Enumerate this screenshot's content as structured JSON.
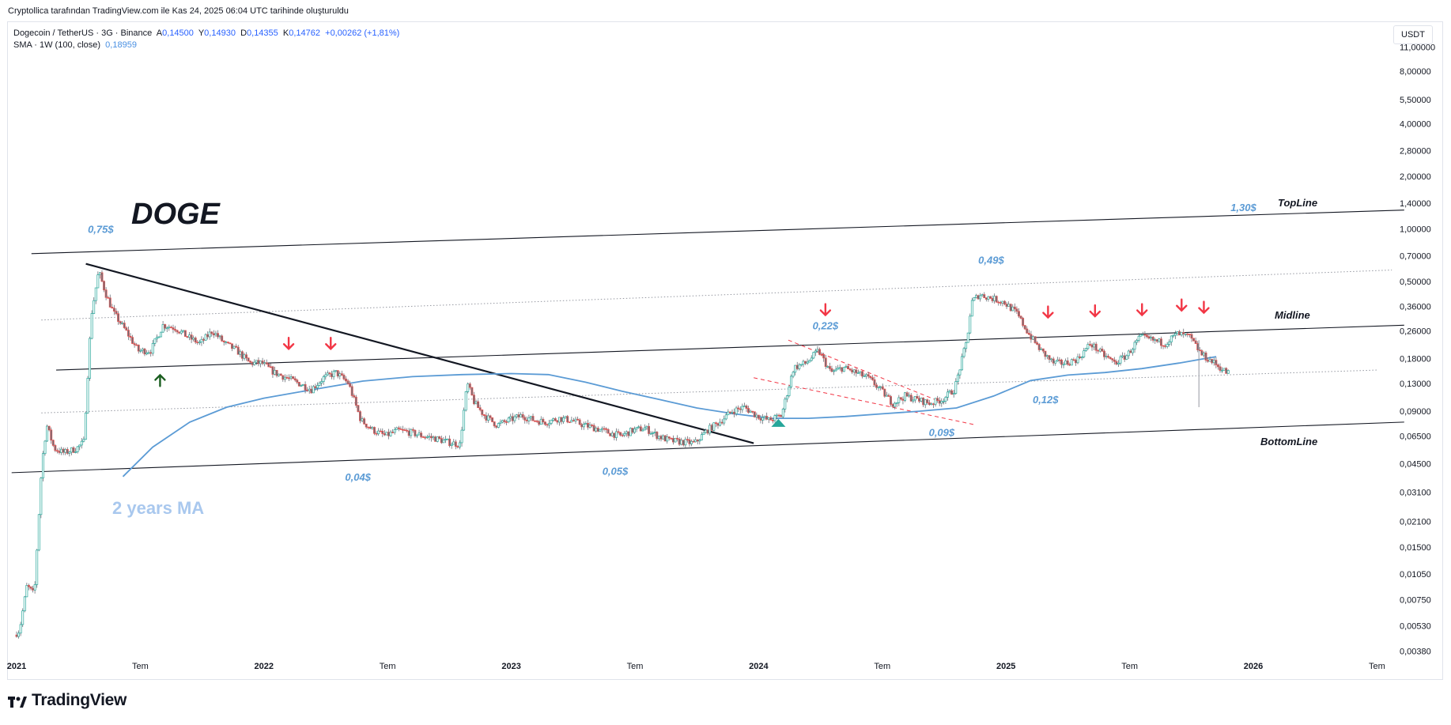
{
  "caption": "Cryptollica tarafından TradingView.com ile Kas 24, 2025 06:04 UTC tarihinde oluşturuldu",
  "legend": {
    "symbol": "Dogecoin / TetherUS · 3G · Binance",
    "open_label": "A",
    "open": "0,14500",
    "high_label": "Y",
    "high": "0,14930",
    "low_label": "D",
    "low": "0,14355",
    "close_label": "K",
    "close": "0,14762",
    "change": "+0,00262 (+1,81%)",
    "sma_label": "SMA · 1W (100, close)",
    "sma_value": "0,18959"
  },
  "currency": "USDT",
  "branding": "TradingView",
  "colors": {
    "up": "#26a69a",
    "down": "#ef5350",
    "sma": "#5b9bd5",
    "arrow_down": "#f23645",
    "arrow_up_green": "#1b5e20",
    "arrow_up_teal": "#26a69a"
  },
  "annotations": {
    "title": "DOGE",
    "ma_label": "2 years MA",
    "topline": "TopLine",
    "midline": "Midline",
    "bottomline": "BottomLine",
    "prices": [
      {
        "text": "0,75$",
        "date": 2021.34,
        "price": 0.95
      },
      {
        "text": "0,04$",
        "date": 2022.38,
        "price": 0.036
      },
      {
        "text": "0,05$",
        "date": 2023.42,
        "price": 0.039
      },
      {
        "text": "0,22$",
        "date": 2024.27,
        "price": 0.265
      },
      {
        "text": "0,09$",
        "date": 2024.74,
        "price": 0.065
      },
      {
        "text": "0,49$",
        "date": 2024.94,
        "price": 0.63
      },
      {
        "text": "0,12$",
        "date": 2025.16,
        "price": 0.1
      },
      {
        "text": "1,30$",
        "date": 2025.96,
        "price": 1.26
      }
    ]
  },
  "chart_data": {
    "type": "candlestick",
    "title": "",
    "xlabel": "",
    "ylabel": "",
    "y_scale": "log",
    "ylim": [
      0.0034,
      15.0
    ],
    "xlim": [
      2021.0,
      2026.58
    ],
    "y_ticks": [
      "11,00000",
      "8,00000",
      "5,50000",
      "4,00000",
      "2,80000",
      "2,00000",
      "1,40000",
      "1,00000",
      "0,70000",
      "0,50000",
      "0,36000",
      "0,26000",
      "0,18000",
      "0,13000",
      "0,09000",
      "0,06500",
      "0,04500",
      "0,03100",
      "0,02100",
      "0,01500",
      "0,01050",
      "0,00750",
      "0,00530",
      "0,00380"
    ],
    "x_ticks": [
      {
        "label": "2021",
        "date": 2021.0
      },
      {
        "label": "Tem",
        "date": 2021.5
      },
      {
        "label": "2022",
        "date": 2022.0
      },
      {
        "label": "Tem",
        "date": 2022.5
      },
      {
        "label": "2023",
        "date": 2023.0
      },
      {
        "label": "Tem",
        "date": 2023.5
      },
      {
        "label": "2024",
        "date": 2024.0
      },
      {
        "label": "Tem",
        "date": 2024.5
      },
      {
        "label": "2025",
        "date": 2025.0
      },
      {
        "label": "Tem",
        "date": 2025.5
      },
      {
        "label": "2026",
        "date": 2026.0
      },
      {
        "label": "Tem",
        "date": 2026.5
      }
    ],
    "price_path": [
      [
        2021.0,
        0.0047
      ],
      [
        2021.02,
        0.005
      ],
      [
        2021.05,
        0.009
      ],
      [
        2021.08,
        0.008
      ],
      [
        2021.11,
        0.045
      ],
      [
        2021.13,
        0.075
      ],
      [
        2021.16,
        0.055
      ],
      [
        2021.2,
        0.052
      ],
      [
        2021.25,
        0.055
      ],
      [
        2021.28,
        0.06
      ],
      [
        2021.31,
        0.32
      ],
      [
        2021.34,
        0.57
      ],
      [
        2021.37,
        0.42
      ],
      [
        2021.4,
        0.33
      ],
      [
        2021.45,
        0.26
      ],
      [
        2021.5,
        0.2
      ],
      [
        2021.55,
        0.2
      ],
      [
        2021.6,
        0.28
      ],
      [
        2021.65,
        0.27
      ],
      [
        2021.7,
        0.24
      ],
      [
        2021.75,
        0.22
      ],
      [
        2021.8,
        0.26
      ],
      [
        2021.85,
        0.22
      ],
      [
        2021.9,
        0.2
      ],
      [
        2021.95,
        0.17
      ],
      [
        2022.0,
        0.17
      ],
      [
        2022.05,
        0.15
      ],
      [
        2022.1,
        0.14
      ],
      [
        2022.15,
        0.13
      ],
      [
        2022.2,
        0.12
      ],
      [
        2022.25,
        0.14
      ],
      [
        2022.3,
        0.15
      ],
      [
        2022.35,
        0.13
      ],
      [
        2022.4,
        0.08
      ],
      [
        2022.45,
        0.07
      ],
      [
        2022.5,
        0.065
      ],
      [
        2022.55,
        0.07
      ],
      [
        2022.6,
        0.068
      ],
      [
        2022.65,
        0.065
      ],
      [
        2022.7,
        0.063
      ],
      [
        2022.75,
        0.06
      ],
      [
        2022.8,
        0.058
      ],
      [
        2022.83,
        0.13
      ],
      [
        2022.86,
        0.1
      ],
      [
        2022.9,
        0.085
      ],
      [
        2022.95,
        0.075
      ],
      [
        2023.0,
        0.08
      ],
      [
        2023.05,
        0.085
      ],
      [
        2023.1,
        0.08
      ],
      [
        2023.15,
        0.078
      ],
      [
        2023.2,
        0.082
      ],
      [
        2023.25,
        0.08
      ],
      [
        2023.3,
        0.075
      ],
      [
        2023.35,
        0.072
      ],
      [
        2023.4,
        0.068
      ],
      [
        2023.45,
        0.065
      ],
      [
        2023.5,
        0.07
      ],
      [
        2023.55,
        0.072
      ],
      [
        2023.6,
        0.065
      ],
      [
        2023.65,
        0.061
      ],
      [
        2023.7,
        0.06
      ],
      [
        2023.75,
        0.059
      ],
      [
        2023.8,
        0.07
      ],
      [
        2023.85,
        0.078
      ],
      [
        2023.9,
        0.09
      ],
      [
        2023.95,
        0.095
      ],
      [
        2024.0,
        0.085
      ],
      [
        2024.05,
        0.08
      ],
      [
        2024.1,
        0.085
      ],
      [
        2024.15,
        0.16
      ],
      [
        2024.2,
        0.17
      ],
      [
        2024.25,
        0.2
      ],
      [
        2024.3,
        0.15
      ],
      [
        2024.35,
        0.16
      ],
      [
        2024.4,
        0.15
      ],
      [
        2024.45,
        0.14
      ],
      [
        2024.5,
        0.12
      ],
      [
        2024.55,
        0.1
      ],
      [
        2024.6,
        0.11
      ],
      [
        2024.65,
        0.105
      ],
      [
        2024.7,
        0.1
      ],
      [
        2024.75,
        0.105
      ],
      [
        2024.8,
        0.12
      ],
      [
        2024.85,
        0.23
      ],
      [
        2024.87,
        0.38
      ],
      [
        2024.9,
        0.42
      ],
      [
        2024.95,
        0.4
      ],
      [
        2025.0,
        0.38
      ],
      [
        2025.05,
        0.33
      ],
      [
        2025.1,
        0.25
      ],
      [
        2025.15,
        0.2
      ],
      [
        2025.2,
        0.17
      ],
      [
        2025.25,
        0.17
      ],
      [
        2025.3,
        0.18
      ],
      [
        2025.35,
        0.22
      ],
      [
        2025.4,
        0.19
      ],
      [
        2025.45,
        0.17
      ],
      [
        2025.5,
        0.19
      ],
      [
        2025.55,
        0.24
      ],
      [
        2025.6,
        0.23
      ],
      [
        2025.65,
        0.22
      ],
      [
        2025.7,
        0.25
      ],
      [
        2025.75,
        0.24
      ],
      [
        2025.8,
        0.19
      ],
      [
        2025.85,
        0.17
      ],
      [
        2025.9,
        0.15
      ]
    ],
    "series": [
      {
        "name": "SMA · 1W (100, close)",
        "points": [
          [
            2021.43,
            0.038
          ],
          [
            2021.55,
            0.056
          ],
          [
            2021.7,
            0.078
          ],
          [
            2021.85,
            0.095
          ],
          [
            2022.0,
            0.107
          ],
          [
            2022.2,
            0.12
          ],
          [
            2022.4,
            0.134
          ],
          [
            2022.6,
            0.142
          ],
          [
            2022.8,
            0.146
          ],
          [
            2023.0,
            0.148
          ],
          [
            2023.15,
            0.146
          ],
          [
            2023.3,
            0.132
          ],
          [
            2023.45,
            0.117
          ],
          [
            2023.6,
            0.105
          ],
          [
            2023.75,
            0.094
          ],
          [
            2023.9,
            0.087
          ],
          [
            2024.05,
            0.082
          ],
          [
            2024.2,
            0.082
          ],
          [
            2024.35,
            0.084
          ],
          [
            2024.5,
            0.087
          ],
          [
            2024.65,
            0.09
          ],
          [
            2024.8,
            0.094
          ],
          [
            2024.95,
            0.11
          ],
          [
            2025.1,
            0.135
          ],
          [
            2025.25,
            0.145
          ],
          [
            2025.4,
            0.15
          ],
          [
            2025.55,
            0.158
          ],
          [
            2025.7,
            0.17
          ],
          [
            2025.8,
            0.18
          ],
          [
            2025.85,
            0.185
          ]
        ]
      }
    ],
    "trend_lines": [
      {
        "name": "TopLine",
        "from": [
          2021.06,
          0.72
        ],
        "to": [
          2026.61,
          1.28
        ],
        "style": "solid"
      },
      {
        "name": "Midline",
        "from": [
          2021.16,
          0.155
        ],
        "to": [
          2026.61,
          0.28
        ],
        "style": "solid"
      },
      {
        "name": "BottomLine",
        "from": [
          2020.98,
          0.04
        ],
        "to": [
          2026.61,
          0.078
        ],
        "style": "solid"
      },
      {
        "name": "Upper dotted",
        "from": [
          2021.1,
          0.3
        ],
        "to": [
          2026.56,
          0.58
        ],
        "style": "dotted"
      },
      {
        "name": "Lower dotted",
        "from": [
          2021.1,
          0.088
        ],
        "to": [
          2026.5,
          0.155
        ],
        "style": "dotted"
      },
      {
        "name": "Descending resistance",
        "from": [
          2021.28,
          0.63
        ],
        "to": [
          2023.98,
          0.059
        ],
        "style": "solid-bold"
      },
      {
        "name": "Channel upper",
        "from": [
          2024.12,
          0.23
        ],
        "to": [
          2024.75,
          0.1
        ],
        "style": "dashed-red"
      },
      {
        "name": "Channel lower",
        "from": [
          2023.98,
          0.14
        ],
        "to": [
          2024.88,
          0.075
        ],
        "style": "dashed-red"
      }
    ],
    "signals": [
      {
        "type": "up",
        "color": "green",
        "date": 2021.58,
        "price": 0.145
      },
      {
        "type": "down",
        "color": "red",
        "date": 2022.1,
        "price": 0.205
      },
      {
        "type": "down",
        "color": "red",
        "date": 2022.27,
        "price": 0.205
      },
      {
        "type": "up",
        "color": "teal",
        "date": 2024.08,
        "price": 0.078
      },
      {
        "type": "down",
        "color": "red",
        "date": 2024.27,
        "price": 0.32
      },
      {
        "type": "down",
        "color": "red",
        "date": 2025.17,
        "price": 0.31
      },
      {
        "type": "down",
        "color": "red",
        "date": 2025.36,
        "price": 0.315
      },
      {
        "type": "down",
        "color": "red",
        "date": 2025.55,
        "price": 0.32
      },
      {
        "type": "down",
        "color": "red",
        "date": 2025.71,
        "price": 0.34
      },
      {
        "type": "down",
        "color": "red",
        "date": 2025.8,
        "price": 0.33
      }
    ]
  }
}
